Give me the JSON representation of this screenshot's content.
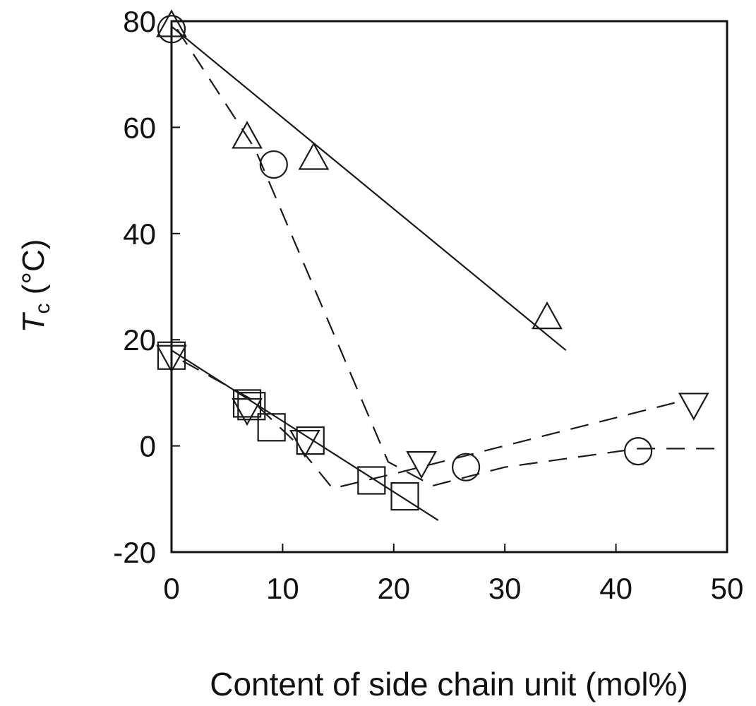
{
  "chart_data": {
    "type": "scatter",
    "title": "",
    "xlabel": "Content of side chain unit (mol%)",
    "ylabel": {
      "symbol": "T",
      "subscript": "c",
      "unit": " (°C)"
    },
    "xlim": [
      0,
      50
    ],
    "ylim": [
      -20,
      80
    ],
    "x_ticks": [
      0,
      10,
      20,
      30,
      40,
      50
    ],
    "y_ticks": [
      -20,
      0,
      20,
      40,
      60,
      80
    ],
    "grid": false,
    "legend": "none",
    "marker_color": "#1a1a1a",
    "series": [
      {
        "marker": "triangle-up",
        "points": [
          [
            0,
            79
          ],
          [
            6.8,
            58
          ],
          [
            12.8,
            54
          ],
          [
            33.8,
            24
          ]
        ],
        "fit_line": {
          "style": "solid",
          "from": [
            0,
            79
          ],
          "to": [
            35.5,
            18
          ]
        }
      },
      {
        "marker": "circle",
        "points": [
          [
            0,
            78.5
          ],
          [
            9.2,
            53
          ],
          [
            26.5,
            -4
          ],
          [
            42,
            -1
          ]
        ],
        "fit_line": {
          "style": "dashed",
          "points": [
            [
              0.5,
              78.5
            ],
            [
              7.5,
              56
            ],
            [
              19.5,
              -3
            ],
            [
              23.5,
              -7.5
            ],
            [
              30,
              -4
            ],
            [
              42,
              -0.5
            ],
            [
              49,
              -0.5
            ]
          ]
        }
      },
      {
        "marker": "square",
        "points": [
          [
            0,
            17
          ],
          [
            6.8,
            8
          ],
          [
            7.2,
            7.5
          ],
          [
            9,
            3.5
          ],
          [
            12.5,
            1
          ],
          [
            18,
            -6.5
          ],
          [
            21,
            -9.5
          ]
        ],
        "fit_line": {
          "style": "solid",
          "from": [
            0,
            18
          ],
          "to": [
            24,
            -14
          ]
        }
      },
      {
        "marker": "triangle-down",
        "points": [
          [
            0,
            17
          ],
          [
            6.8,
            7
          ],
          [
            12,
            1
          ],
          [
            22.5,
            -3
          ],
          [
            47,
            8
          ]
        ],
        "fit_line": {
          "style": "dashed",
          "points": [
            [
              1,
              16
            ],
            [
              7,
              9
            ],
            [
              11,
              1
            ],
            [
              14.5,
              -8
            ],
            [
              20.5,
              -5
            ],
            [
              46,
              8.5
            ]
          ]
        }
      }
    ]
  }
}
